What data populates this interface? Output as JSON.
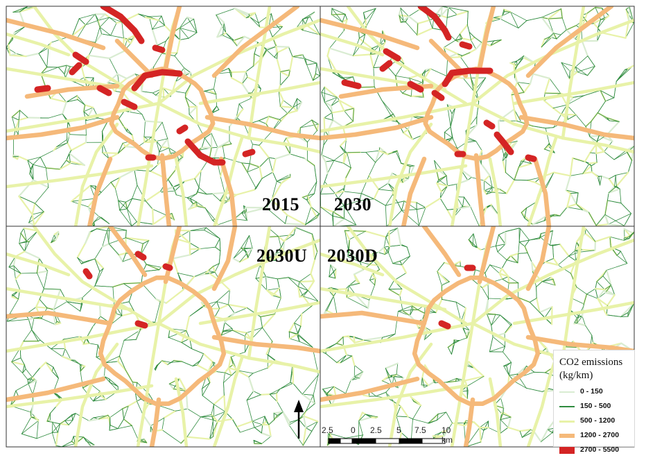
{
  "panels": [
    {
      "title": "2015"
    },
    {
      "title": "2030"
    },
    {
      "title": "2030U"
    },
    {
      "title": "2030D"
    }
  ],
  "legend": {
    "title_line1": "CO2 emissions",
    "title_line2": "(kg/km)",
    "classes": [
      {
        "label": "0 - 150",
        "color": "#d9ecd2"
      },
      {
        "label": "150 - 500",
        "color": "#2e8b3e"
      },
      {
        "label": "500 - 1200",
        "color": "#e8f2a8"
      },
      {
        "label": "1200 - 2700",
        "color": "#f5b97a"
      },
      {
        "label": "2700 - 5500",
        "color": "#d42424"
      }
    ]
  },
  "scale_bar": {
    "ticks": [
      "2.5",
      "0",
      "2.5",
      "5",
      "7.5",
      "10 km"
    ]
  },
  "north_arrow": "north-arrow-icon"
}
